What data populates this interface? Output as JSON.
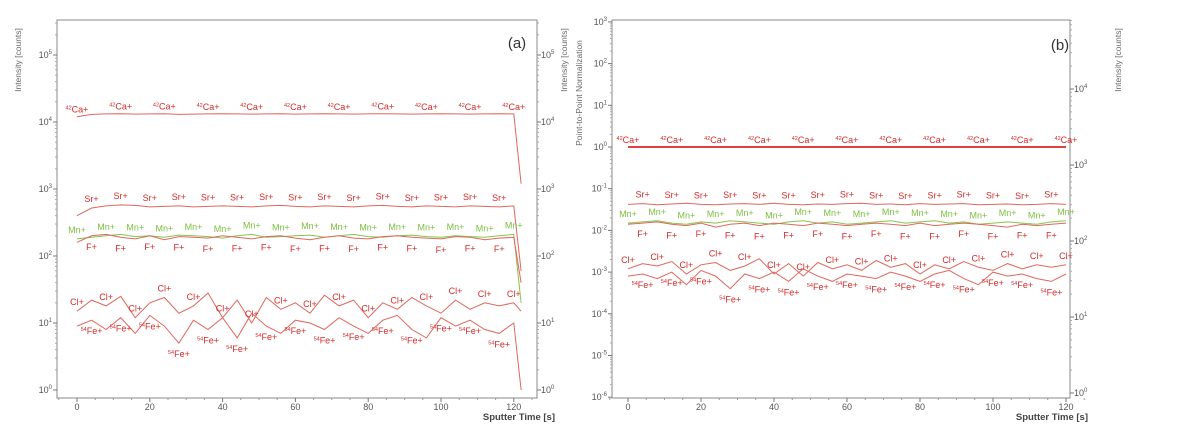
{
  "chart_data": [
    {
      "type": "line",
      "panel_label": "(a)",
      "xlabel": "Sputter Time [s]",
      "ylabel": "Intensity [counts]",
      "ylabel_right": "Intensity [counts]",
      "yscale": "log",
      "ylim": [
        1,
        330000
      ],
      "xlim": [
        -5,
        125
      ],
      "xticks": [
        0,
        20,
        40,
        60,
        80,
        100,
        120
      ],
      "yticks_exp": [
        0,
        1,
        2,
        3,
        4,
        5
      ],
      "yticks_right_exp": [
        0,
        1,
        2,
        3,
        4,
        5
      ],
      "grid": false,
      "x": [
        0,
        4,
        8,
        12,
        16,
        20,
        24,
        28,
        32,
        36,
        40,
        44,
        48,
        52,
        56,
        60,
        64,
        68,
        72,
        76,
        80,
        84,
        88,
        92,
        96,
        100,
        104,
        108,
        112,
        116,
        120,
        122
      ],
      "series": [
        {
          "name": "42Ca+",
          "color": "#e0675c",
          "values": [
            12000,
            13000,
            13200,
            13300,
            13100,
            13200,
            13300,
            13000,
            13100,
            13200,
            13300,
            13200,
            13100,
            13200,
            13300,
            13100,
            13200,
            13300,
            13200,
            13100,
            13200,
            13300,
            13200,
            13100,
            13200,
            13300,
            13200,
            13100,
            13200,
            13300,
            13200,
            1200
          ]
        },
        {
          "name": "Sr+",
          "color": "#e0675c",
          "values": [
            400,
            520,
            560,
            580,
            570,
            540,
            550,
            560,
            540,
            550,
            560,
            550,
            540,
            560,
            570,
            550,
            540,
            560,
            550,
            540,
            560,
            570,
            550,
            540,
            560,
            550,
            540,
            560,
            550,
            540,
            560,
            60
          ]
        },
        {
          "name": "Mn+",
          "color": "#86c54e",
          "values": [
            180,
            190,
            200,
            210,
            195,
            200,
            190,
            205,
            200,
            195,
            185,
            200,
            210,
            190,
            195,
            200,
            205,
            190,
            200,
            210,
            195,
            190,
            200,
            205,
            195,
            190,
            200,
            195,
            190,
            200,
            210,
            20
          ]
        },
        {
          "name": "F+",
          "color": "#e0675c",
          "values": [
            160,
            200,
            210,
            190,
            180,
            200,
            175,
            195,
            190,
            185,
            200,
            190,
            180,
            195,
            200,
            185,
            175,
            190,
            200,
            185,
            180,
            195,
            200,
            190,
            185,
            180,
            195,
            190,
            175,
            185,
            190,
            40
          ]
        },
        {
          "name": "Cl+",
          "color": "#e0675c",
          "values": [
            15,
            22,
            18,
            25,
            12,
            20,
            24,
            14,
            18,
            28,
            12,
            22,
            10,
            24,
            16,
            20,
            14,
            26,
            18,
            22,
            12,
            20,
            16,
            24,
            18,
            14,
            22,
            16,
            20,
            18,
            20,
            15
          ]
        },
        {
          "name": "54Fe+",
          "color": "#e0675c",
          "values": [
            9,
            11,
            8,
            12,
            7,
            13,
            9,
            5,
            11,
            8,
            12,
            6,
            14,
            9,
            7,
            11,
            10,
            8,
            12,
            9,
            7,
            11,
            13,
            8,
            6,
            12,
            9,
            11,
            8,
            7,
            10,
            1
          ]
        }
      ]
    },
    {
      "type": "line",
      "panel_label": "(b)",
      "xlabel": "Sputter Time [s]",
      "ylabel": "Point-to-Point Normalization",
      "ylabel_right": "Intensity [counts]",
      "yscale": "log",
      "ylim": [
        1e-06,
        1000
      ],
      "xlim": [
        -5,
        125
      ],
      "xticks": [
        0,
        20,
        40,
        60,
        80,
        100,
        120
      ],
      "yticks_exp": [
        -6,
        -5,
        -4,
        -3,
        -2,
        -1,
        0,
        1,
        2,
        3
      ],
      "yticks_right_exp": [
        0,
        1,
        2,
        3,
        4
      ],
      "grid": false,
      "x": [
        0,
        4,
        8,
        12,
        16,
        20,
        24,
        28,
        32,
        36,
        40,
        44,
        48,
        52,
        56,
        60,
        64,
        68,
        72,
        76,
        80,
        84,
        88,
        92,
        96,
        100,
        104,
        108,
        112,
        116,
        120
      ],
      "series": [
        {
          "name": "42Ca+",
          "color": "#d8262a",
          "values": [
            1,
            1,
            1,
            1,
            1,
            1,
            1,
            1,
            1,
            1,
            1,
            1,
            1,
            1,
            1,
            1,
            1,
            1,
            1,
            1,
            1,
            1,
            1,
            1,
            1,
            1,
            1,
            1,
            1,
            1,
            1
          ]
        },
        {
          "name": "Sr+",
          "color": "#e0675c",
          "values": [
            0.042,
            0.044,
            0.041,
            0.043,
            0.045,
            0.042,
            0.041,
            0.043,
            0.044,
            0.042,
            0.045,
            0.042,
            0.041,
            0.043,
            0.042,
            0.044,
            0.045,
            0.042,
            0.043,
            0.041,
            0.044,
            0.042,
            0.043,
            0.044,
            0.041,
            0.042,
            0.043,
            0.041,
            0.042,
            0.044,
            0.042
          ]
        },
        {
          "name": "Mn+",
          "color": "#86c54e",
          "values": [
            0.015,
            0.016,
            0.017,
            0.015,
            0.014,
            0.016,
            0.015,
            0.017,
            0.016,
            0.015,
            0.014,
            0.016,
            0.017,
            0.015,
            0.016,
            0.014,
            0.015,
            0.016,
            0.017,
            0.015,
            0.016,
            0.017,
            0.015,
            0.016,
            0.014,
            0.015,
            0.016,
            0.015,
            0.014,
            0.016,
            0.017
          ]
        },
        {
          "name": "F+",
          "color": "#e0675c",
          "values": [
            0.014,
            0.015,
            0.016,
            0.014,
            0.013,
            0.015,
            0.012,
            0.014,
            0.015,
            0.013,
            0.015,
            0.014,
            0.013,
            0.015,
            0.014,
            0.013,
            0.014,
            0.015,
            0.014,
            0.013,
            0.015,
            0.013,
            0.014,
            0.015,
            0.014,
            0.013,
            0.012,
            0.014,
            0.013,
            0.014,
            0.015
          ]
        },
        {
          "name": "Cl+",
          "color": "#e0675c",
          "values": [
            0.0012,
            0.0016,
            0.0014,
            0.0018,
            0.0009,
            0.0015,
            0.0017,
            0.0011,
            0.0014,
            0.0021,
            0.0009,
            0.0016,
            0.0008,
            0.0017,
            0.0012,
            0.0015,
            0.0011,
            0.0019,
            0.0013,
            0.0016,
            0.0009,
            0.0015,
            0.0012,
            0.0018,
            0.0013,
            0.0011,
            0.0016,
            0.0012,
            0.0015,
            0.0013,
            0.0015
          ]
        },
        {
          "name": "54Fe+",
          "color": "#e0675c",
          "values": [
            0.0008,
            0.0009,
            0.0007,
            0.001,
            0.0005,
            0.0011,
            0.0008,
            0.0004,
            0.0009,
            0.0007,
            0.001,
            0.0006,
            0.0012,
            0.0008,
            0.0006,
            0.0009,
            0.0008,
            0.0007,
            0.001,
            0.0008,
            0.0006,
            0.0009,
            0.0011,
            0.0007,
            0.0005,
            0.001,
            0.0008,
            0.0009,
            0.0007,
            0.0006,
            0.0009
          ]
        }
      ]
    }
  ]
}
